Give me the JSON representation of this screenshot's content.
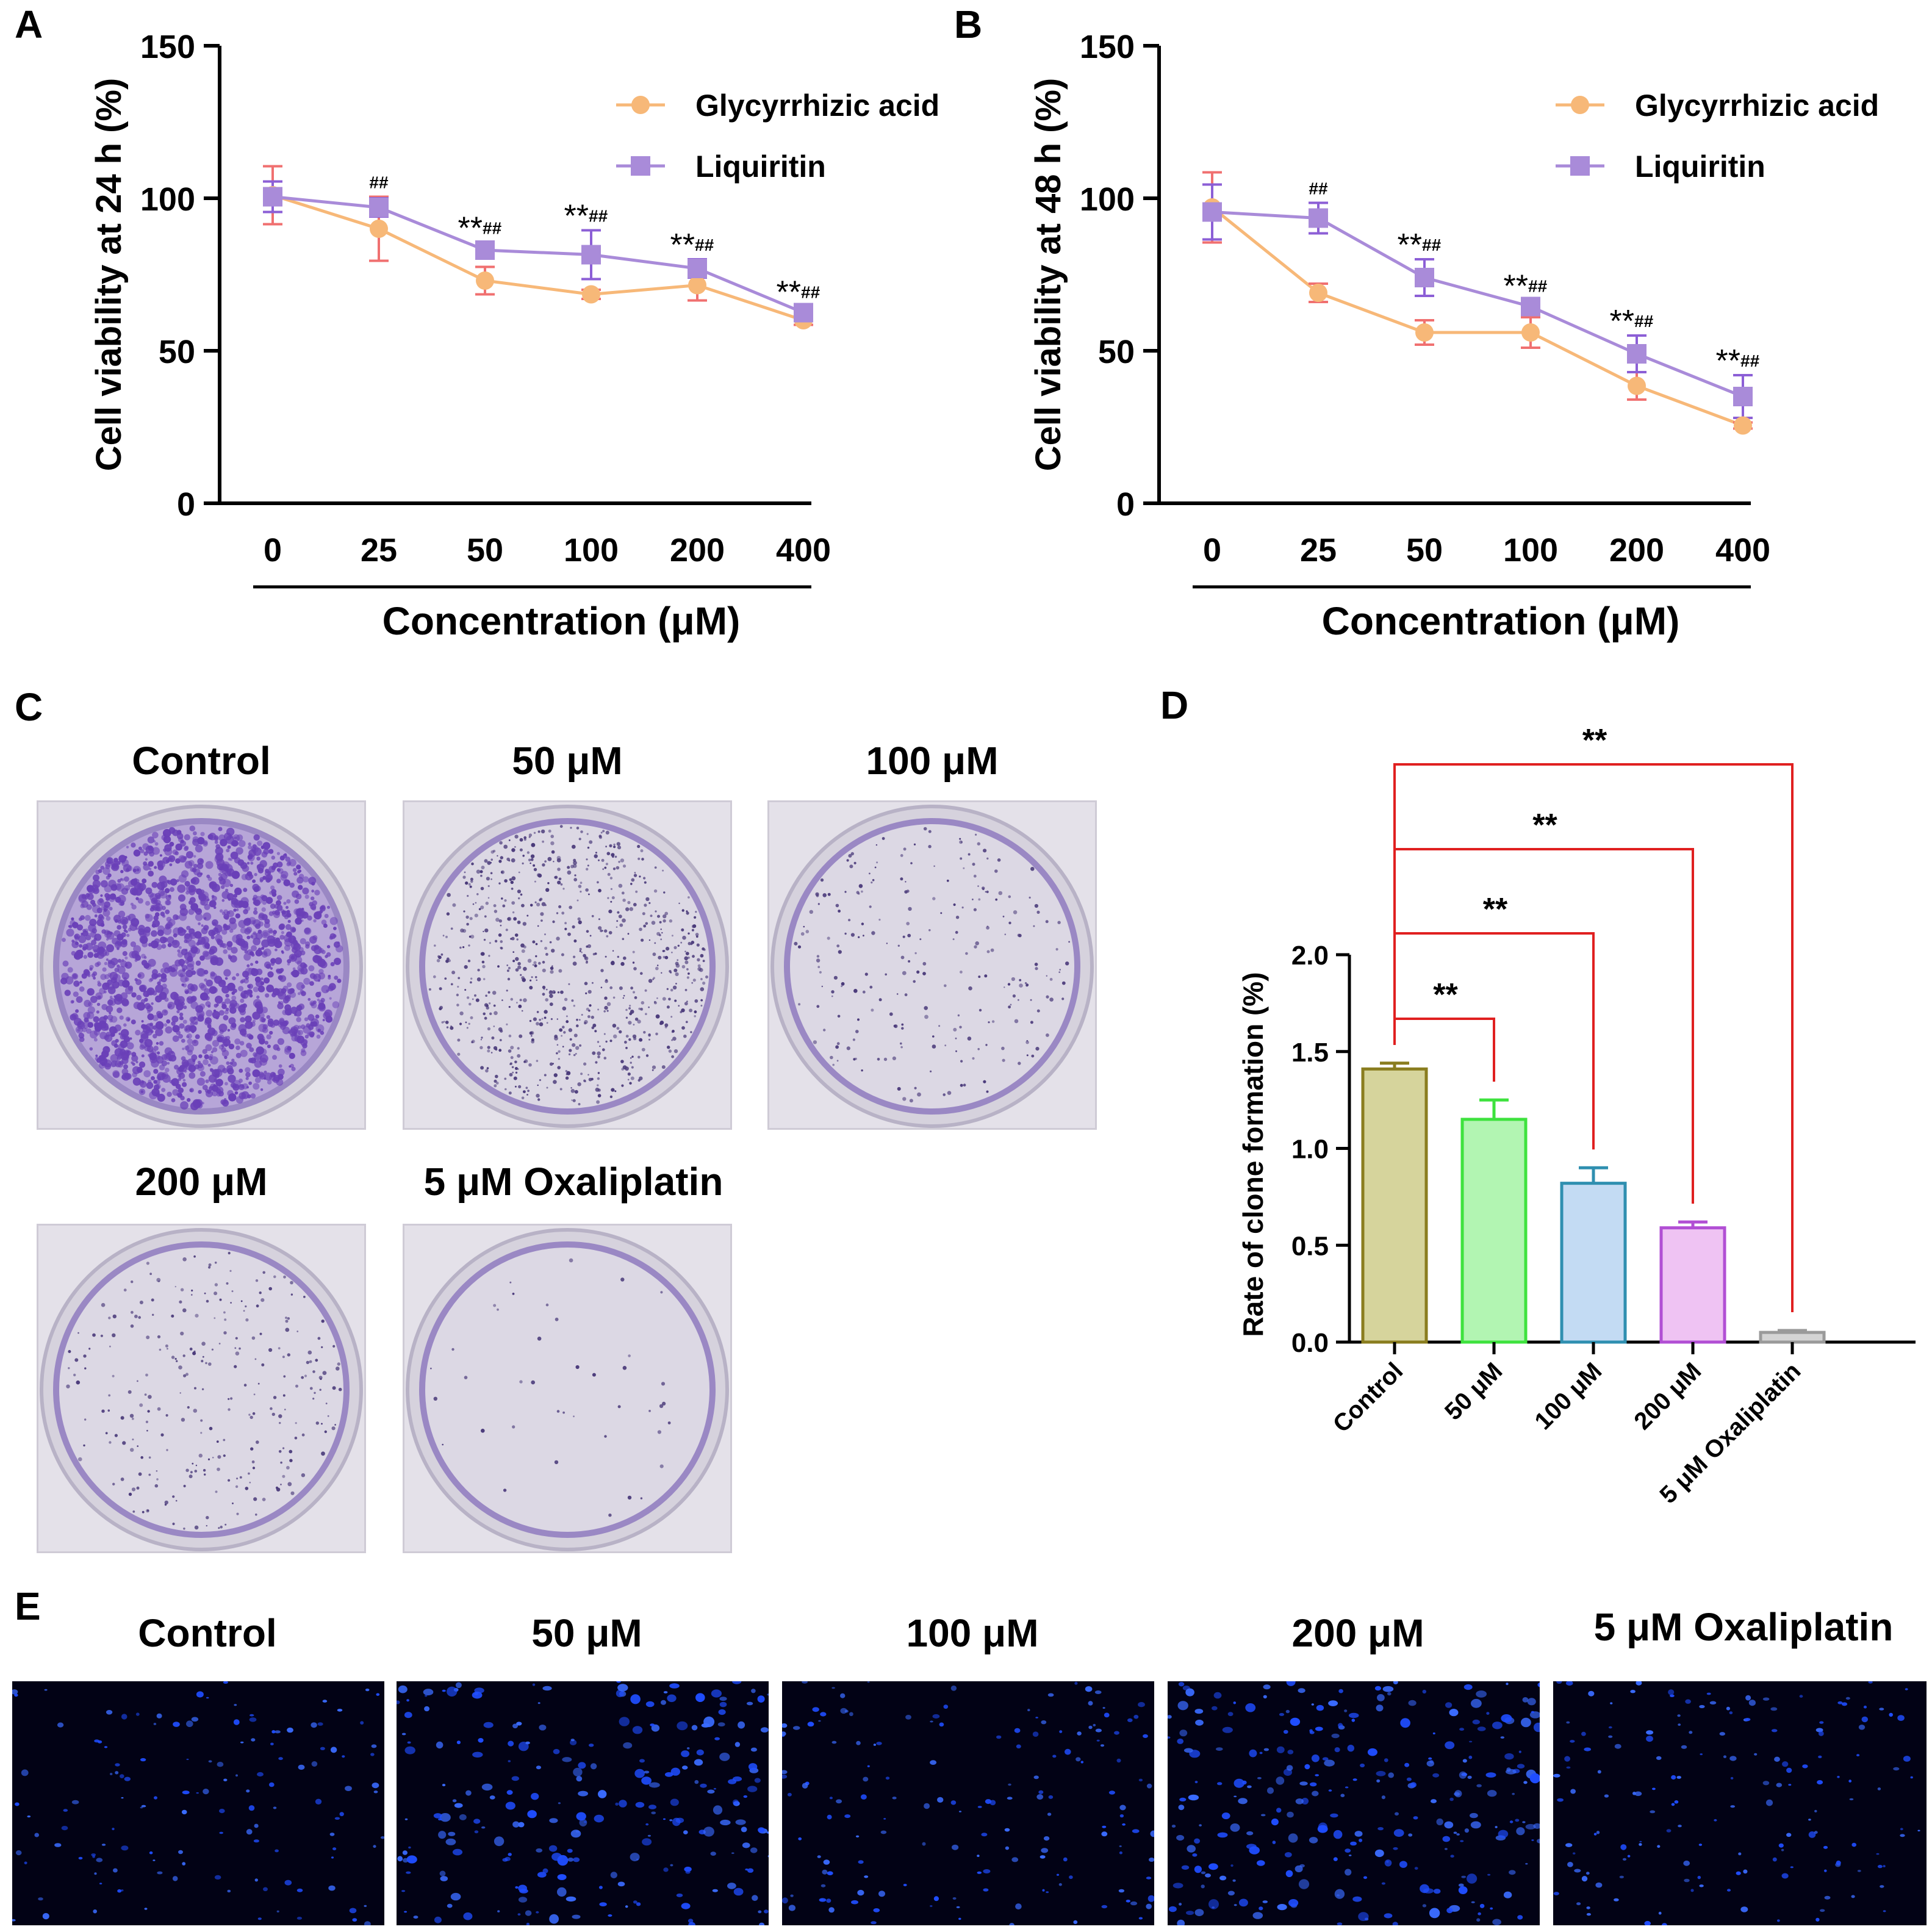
{
  "panels": {
    "A": "A",
    "B": "B",
    "C": "C",
    "D": "D",
    "E": "E"
  },
  "legend": {
    "glycyrrhizic": "Glycyrrhizic acid",
    "liquiritin": "Liquiritin"
  },
  "colors": {
    "glycyrrhizic": "#f7b878",
    "glycyrrhizic_err": "#f07070",
    "liquiritin": "#a98bd9",
    "liquiritin_err": "#8c5fd6",
    "sig": "#e02020"
  },
  "chart_data": [
    {
      "id": "A",
      "type": "line",
      "xlabel": "Concentration (μM)",
      "ylabel": "Cell viability at 24 h (%)",
      "ylim": [
        0,
        150
      ],
      "yticks": [
        0,
        50,
        100,
        150
      ],
      "categories": [
        "0",
        "25",
        "50",
        "100",
        "200",
        "400"
      ],
      "series": [
        {
          "name": "Glycyrrhizic acid",
          "values": [
            101,
            90,
            73,
            68.5,
            71.5,
            60
          ],
          "errors": [
            9.5,
            10.5,
            4.5,
            1.5,
            5,
            1.5
          ]
        },
        {
          "name": "Liquiritin",
          "values": [
            100.5,
            97,
            83,
            81.5,
            77,
            62.5
          ],
          "errors": [
            5,
            3,
            2.5,
            8,
            3,
            2
          ]
        }
      ],
      "annotations": [
        {
          "index": 1,
          "stars": "",
          "hashes": "##"
        },
        {
          "index": 2,
          "stars": "**",
          "hashes": "##"
        },
        {
          "index": 3,
          "stars": "**",
          "hashes": "##"
        },
        {
          "index": 4,
          "stars": "**",
          "hashes": "##"
        },
        {
          "index": 5,
          "stars": "**",
          "hashes": "##"
        }
      ]
    },
    {
      "id": "B",
      "type": "line",
      "xlabel": "Concentration (μM)",
      "ylabel": "Cell viability at 48 h (%)",
      "ylim": [
        0,
        150
      ],
      "yticks": [
        0,
        50,
        100,
        150
      ],
      "categories": [
        "0",
        "25",
        "50",
        "100",
        "200",
        "400"
      ],
      "series": [
        {
          "name": "Glycyrrhizic acid",
          "values": [
            97,
            69,
            56,
            56,
            38.5,
            25.5
          ],
          "errors": [
            11.5,
            3,
            4,
            5,
            4.5,
            1
          ]
        },
        {
          "name": "Liquiritin",
          "values": [
            95.5,
            93.5,
            74,
            64.5,
            49,
            35
          ],
          "errors": [
            9,
            5,
            6,
            2,
            6,
            7
          ]
        }
      ],
      "annotations": [
        {
          "index": 1,
          "stars": "",
          "hashes": "##"
        },
        {
          "index": 2,
          "stars": "**",
          "hashes": "##"
        },
        {
          "index": 3,
          "stars": "**",
          "hashes": "##"
        },
        {
          "index": 4,
          "stars": "**",
          "hashes": "##"
        },
        {
          "index": 5,
          "stars": "**",
          "hashes": "##"
        }
      ]
    },
    {
      "id": "D",
      "type": "bar",
      "xlabel": "",
      "ylabel": "Rate of clone formation (%)",
      "ylim": [
        0,
        2.0
      ],
      "yticks": [
        "0.0",
        "0.5",
        "1.0",
        "1.5",
        "2.0"
      ],
      "categories": [
        "Control",
        "50 μM",
        "100 μM",
        "200 μM",
        "5 μM Oxaliplatin"
      ],
      "values": [
        1.41,
        1.15,
        0.82,
        0.59,
        0.05
      ],
      "errors": [
        0.03,
        0.1,
        0.08,
        0.03,
        0.01
      ],
      "bar_fill": [
        "#d6d49c",
        "#b2f5b2",
        "#c3dbf3",
        "#efc3f3",
        "#d4d4d4"
      ],
      "bar_stroke": [
        "#8a7d1f",
        "#3ee23e",
        "#2f8fb0",
        "#b14fd4",
        "#9a9a9a"
      ],
      "significance": [
        {
          "from": 0,
          "to": 1,
          "label": "**"
        },
        {
          "from": 0,
          "to": 2,
          "label": "**"
        },
        {
          "from": 0,
          "to": 3,
          "label": "**"
        },
        {
          "from": 0,
          "to": 4,
          "label": "**"
        }
      ]
    }
  ],
  "panel_c": {
    "titles": [
      "Control",
      "50 μM",
      "100 μM",
      "200 μM",
      "5 μM Oxaliplatin"
    ],
    "density": [
      1.0,
      0.45,
      0.12,
      0.14,
      0.0
    ]
  },
  "panel_e": {
    "titles": [
      "Control",
      "50 μM",
      "100 μM",
      "200 μM",
      "5 μM Oxaliplatin"
    ],
    "density": [
      0.35,
      0.75,
      0.45,
      0.9,
      0.45
    ]
  }
}
